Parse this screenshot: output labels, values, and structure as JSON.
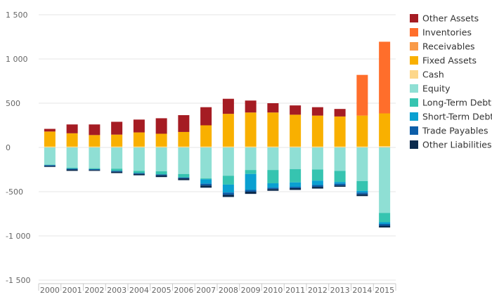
{
  "chart_data": {
    "type": "bar",
    "stacked": true,
    "title": "",
    "xlabel": "",
    "ylabel": "",
    "ylim": [
      -1500,
      1500
    ],
    "yticks": [
      1500,
      1000,
      500,
      0,
      -500,
      -1000,
      -1500
    ],
    "ytick_labels": [
      "1 500",
      "1 000",
      "500",
      "0",
      "-500",
      "-1 000",
      "-1 500"
    ],
    "grid": true,
    "legend_position": "right",
    "categories": [
      "2000",
      "2001",
      "2002",
      "2003",
      "2004",
      "2005",
      "2006",
      "2007",
      "2008",
      "2009",
      "2010",
      "2011",
      "2012",
      "2013",
      "2014",
      "2015"
    ],
    "positive_series": [
      {
        "name": "Cash",
        "color": "#fdd78a",
        "values": [
          10,
          10,
          10,
          10,
          10,
          10,
          10,
          10,
          10,
          10,
          10,
          10,
          10,
          10,
          10,
          15
        ]
      },
      {
        "name": "Fixed Assets",
        "color": "#f9b000",
        "values": [
          170,
          150,
          130,
          135,
          160,
          145,
          165,
          240,
          370,
          385,
          385,
          360,
          350,
          340,
          350,
          370
        ]
      },
      {
        "name": "Receivables",
        "color": "#f99a48",
        "values": [
          0,
          0,
          0,
          0,
          0,
          0,
          0,
          0,
          0,
          0,
          0,
          0,
          0,
          0,
          0,
          0
        ]
      },
      {
        "name": "Inventories",
        "color": "#ff6e2b",
        "values": [
          0,
          0,
          0,
          0,
          0,
          0,
          0,
          0,
          0,
          0,
          0,
          0,
          0,
          0,
          460,
          810
        ]
      },
      {
        "name": "Other Assets",
        "color": "#a51c23",
        "values": [
          30,
          100,
          120,
          145,
          145,
          175,
          190,
          205,
          170,
          135,
          105,
          105,
          95,
          85,
          0,
          0
        ]
      }
    ],
    "negative_series": [
      {
        "name": "Equity",
        "color": "#8fdfd4",
        "values": [
          -195,
          -230,
          -235,
          -240,
          -265,
          -270,
          -300,
          -350,
          -320,
          -255,
          -255,
          -245,
          -250,
          -265,
          -380,
          -740
        ]
      },
      {
        "name": "Long-Term Debt",
        "color": "#36c4b0",
        "values": [
          -5,
          -10,
          -10,
          -25,
          -25,
          -35,
          -40,
          -10,
          -100,
          -45,
          -150,
          -150,
          -125,
          -125,
          -110,
          -105
        ]
      },
      {
        "name": "Short-Term Debt",
        "color": "#0aa0d1",
        "values": [
          0,
          0,
          0,
          0,
          0,
          0,
          0,
          -50,
          -90,
          -180,
          -50,
          -50,
          -50,
          -20,
          -20,
          -20
        ]
      },
      {
        "name": "Trade Payables",
        "color": "#0d5ea8",
        "values": [
          -10,
          -10,
          -10,
          -10,
          -10,
          -10,
          -10,
          -20,
          -25,
          -20,
          -15,
          -15,
          -20,
          -20,
          -20,
          -20
        ]
      },
      {
        "name": "Other Liabilities",
        "color": "#0b2a4d",
        "values": [
          -10,
          -15,
          -10,
          -15,
          -15,
          -20,
          -20,
          -25,
          -25,
          -25,
          -20,
          -20,
          -20,
          -15,
          -20,
          -20
        ]
      }
    ],
    "legend": [
      {
        "name": "Other Assets",
        "color": "#a51c23"
      },
      {
        "name": "Inventories",
        "color": "#ff6e2b"
      },
      {
        "name": "Receivables",
        "color": "#f99a48"
      },
      {
        "name": "Fixed Assets",
        "color": "#f9b000"
      },
      {
        "name": "Cash",
        "color": "#fdd78a"
      },
      {
        "name": "Equity",
        "color": "#8fdfd4"
      },
      {
        "name": "Long-Term Debt",
        "color": "#36c4b0"
      },
      {
        "name": "Short-Term Debt",
        "color": "#0aa0d1"
      },
      {
        "name": "Trade Payables",
        "color": "#0d5ea8"
      },
      {
        "name": "Other Liabilities",
        "color": "#0b2a4d"
      }
    ]
  }
}
